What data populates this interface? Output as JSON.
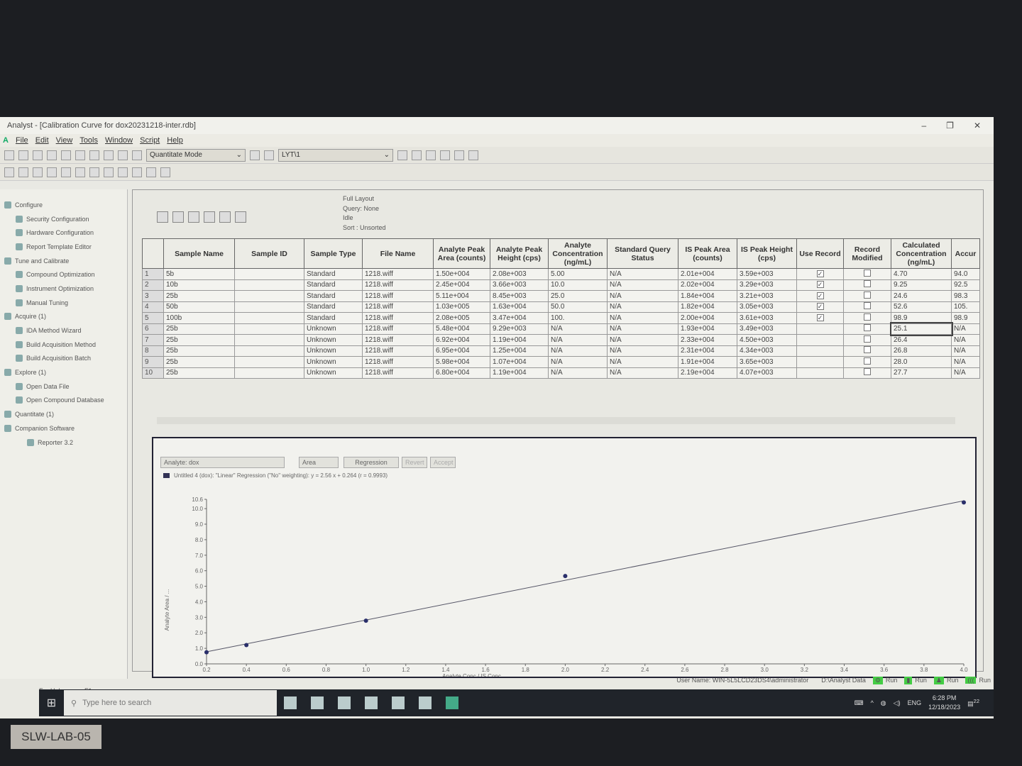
{
  "window": {
    "title": "Analyst - [Calibration Curve for dox20231218-inter.rdb]"
  },
  "menu": [
    "File",
    "Edit",
    "View",
    "Tools",
    "Window",
    "Script",
    "Help"
  ],
  "toolbar": {
    "mode": "Quantitate Mode",
    "project": "LYT\\1"
  },
  "sidebar": {
    "items": [
      {
        "label": "Configure",
        "level": 0
      },
      {
        "label": "Security Configuration",
        "level": 1
      },
      {
        "label": "Hardware Configuration",
        "level": 1
      },
      {
        "label": "Report Template Editor",
        "level": 1
      },
      {
        "label": "Tune and Calibrate",
        "level": 0
      },
      {
        "label": "Compound Optimization",
        "level": 1
      },
      {
        "label": "Instrument Optimization",
        "level": 1
      },
      {
        "label": "Manual Tuning",
        "level": 1
      },
      {
        "label": "Acquire  (1)",
        "level": 0
      },
      {
        "label": "IDA Method Wizard",
        "level": 1
      },
      {
        "label": "Build Acquisition Method",
        "level": 1
      },
      {
        "label": "Build Acquisition Batch",
        "level": 1
      },
      {
        "label": "Explore  (1)",
        "level": 0
      },
      {
        "label": "Open Data File",
        "level": 1
      },
      {
        "label": "Open Compound Database",
        "level": 1
      },
      {
        "label": "Quantitate  (1)",
        "level": 0
      },
      {
        "label": "Companion Software",
        "level": 0
      },
      {
        "label": "Reporter 3.2",
        "level": 2
      }
    ]
  },
  "info": {
    "layout": "Full Layout",
    "query": "Query: None",
    "state": "Idle",
    "sort": "Sort : Unsorted"
  },
  "table": {
    "headers": [
      "",
      "Sample Name",
      "Sample ID",
      "Sample Type",
      "File Name",
      "Analyte Peak Area (counts)",
      "Analyte Peak Height (cps)",
      "Analyte Concentration (ng/mL)",
      "Standard Query Status",
      "IS Peak Area (counts)",
      "IS Peak Height (cps)",
      "Use Record",
      "Record Modified",
      "Calculated Concentration (ng/mL)",
      "Accur"
    ],
    "rows": [
      [
        "1",
        "5b",
        "",
        "Standard",
        "1218.wiff",
        "1.50e+004",
        "2.08e+003",
        "5.00",
        "N/A",
        "2.01e+004",
        "3.59e+003",
        true,
        false,
        "4.70",
        "94.0"
      ],
      [
        "2",
        "10b",
        "",
        "Standard",
        "1218.wiff",
        "2.45e+004",
        "3.66e+003",
        "10.0",
        "N/A",
        "2.02e+004",
        "3.29e+003",
        true,
        false,
        "9.25",
        "92.5"
      ],
      [
        "3",
        "25b",
        "",
        "Standard",
        "1218.wiff",
        "5.11e+004",
        "8.45e+003",
        "25.0",
        "N/A",
        "1.84e+004",
        "3.21e+003",
        true,
        false,
        "24.6",
        "98.3"
      ],
      [
        "4",
        "50b",
        "",
        "Standard",
        "1218.wiff",
        "1.03e+005",
        "1.63e+004",
        "50.0",
        "N/A",
        "1.82e+004",
        "3.05e+003",
        true,
        false,
        "52.6",
        "105."
      ],
      [
        "5",
        "100b",
        "",
        "Standard",
        "1218.wiff",
        "2.08e+005",
        "3.47e+004",
        "100.",
        "N/A",
        "2.00e+004",
        "3.61e+003",
        true,
        false,
        "98.9",
        "98.9"
      ],
      [
        "6",
        "25b",
        "",
        "Unknown",
        "1218.wiff",
        "5.48e+004",
        "9.29e+003",
        "N/A",
        "N/A",
        "1.93e+004",
        "3.49e+003",
        null,
        false,
        "25.1",
        "N/A"
      ],
      [
        "7",
        "25b",
        "",
        "Unknown",
        "1218.wiff",
        "6.92e+004",
        "1.19e+004",
        "N/A",
        "N/A",
        "2.33e+004",
        "4.50e+003",
        null,
        false,
        "26.4",
        "N/A"
      ],
      [
        "8",
        "25b",
        "",
        "Unknown",
        "1218.wiff",
        "6.95e+004",
        "1.25e+004",
        "N/A",
        "N/A",
        "2.31e+004",
        "4.34e+003",
        null,
        false,
        "26.8",
        "N/A"
      ],
      [
        "9",
        "25b",
        "",
        "Unknown",
        "1218.wiff",
        "5.98e+004",
        "1.07e+004",
        "N/A",
        "N/A",
        "1.91e+004",
        "3.65e+003",
        null,
        false,
        "28.0",
        "N/A"
      ],
      [
        "10",
        "25b",
        "",
        "Unknown",
        "1218.wiff",
        "6.80e+004",
        "1.19e+004",
        "N/A",
        "N/A",
        "2.19e+004",
        "4.07e+003",
        null,
        false,
        "27.7",
        "N/A"
      ]
    ]
  },
  "chart_controls": {
    "analyte_label": "Analyte:",
    "analyte": "dox",
    "area": "Area",
    "regression": "Regression",
    "revert": "Revert",
    "accept": "Accept"
  },
  "chart_data": {
    "type": "scatter",
    "legend": "Untitled 4 (dox): \"Linear\" Regression (\"No\" weighting): y = 2.56 x + 0.264 (r = 0.9993)",
    "xlabel": "Analyte Conc / IS Conc",
    "ylabel": "Analyte Area / ...",
    "xlim": [
      0.2,
      4.0
    ],
    "ylim": [
      0,
      10.6
    ],
    "xticks": [
      "0.2",
      "0.4",
      "0.6",
      "0.8",
      "1.0",
      "1.2",
      "1.4",
      "1.6",
      "1.8",
      "2.0",
      "2.2",
      "2.4",
      "2.6",
      "2.8",
      "3.0",
      "3.2",
      "3.4",
      "3.6",
      "3.8",
      "4.0"
    ],
    "yticks": [
      "0.0",
      "1.0",
      "2.0",
      "3.0",
      "4.0",
      "5.0",
      "6.0",
      "7.0",
      "8.0",
      "9.0",
      "10.0",
      "10.6"
    ],
    "points": [
      [
        0.2,
        0.75
      ],
      [
        0.4,
        1.21
      ],
      [
        1.0,
        2.78
      ],
      [
        2.0,
        5.66
      ],
      [
        4.0,
        10.4
      ]
    ],
    "fit": {
      "slope": 2.56,
      "intercept": 0.264
    },
    "color": "#2a2f6a",
    "legend_placement": "top-left",
    "grid": false
  },
  "status": {
    "help": "For Help, press F1",
    "user": "User Name: WIN-5L5LCD23DS4\\administrator",
    "path": "D:\\Analyst Data",
    "run": "Run"
  },
  "taskbar": {
    "search": "Type here to search",
    "lang": "ENG",
    "time": "6:28 PM",
    "date": "12/18/2023",
    "notifications": "22"
  },
  "sticker": "SLW-LAB-05"
}
